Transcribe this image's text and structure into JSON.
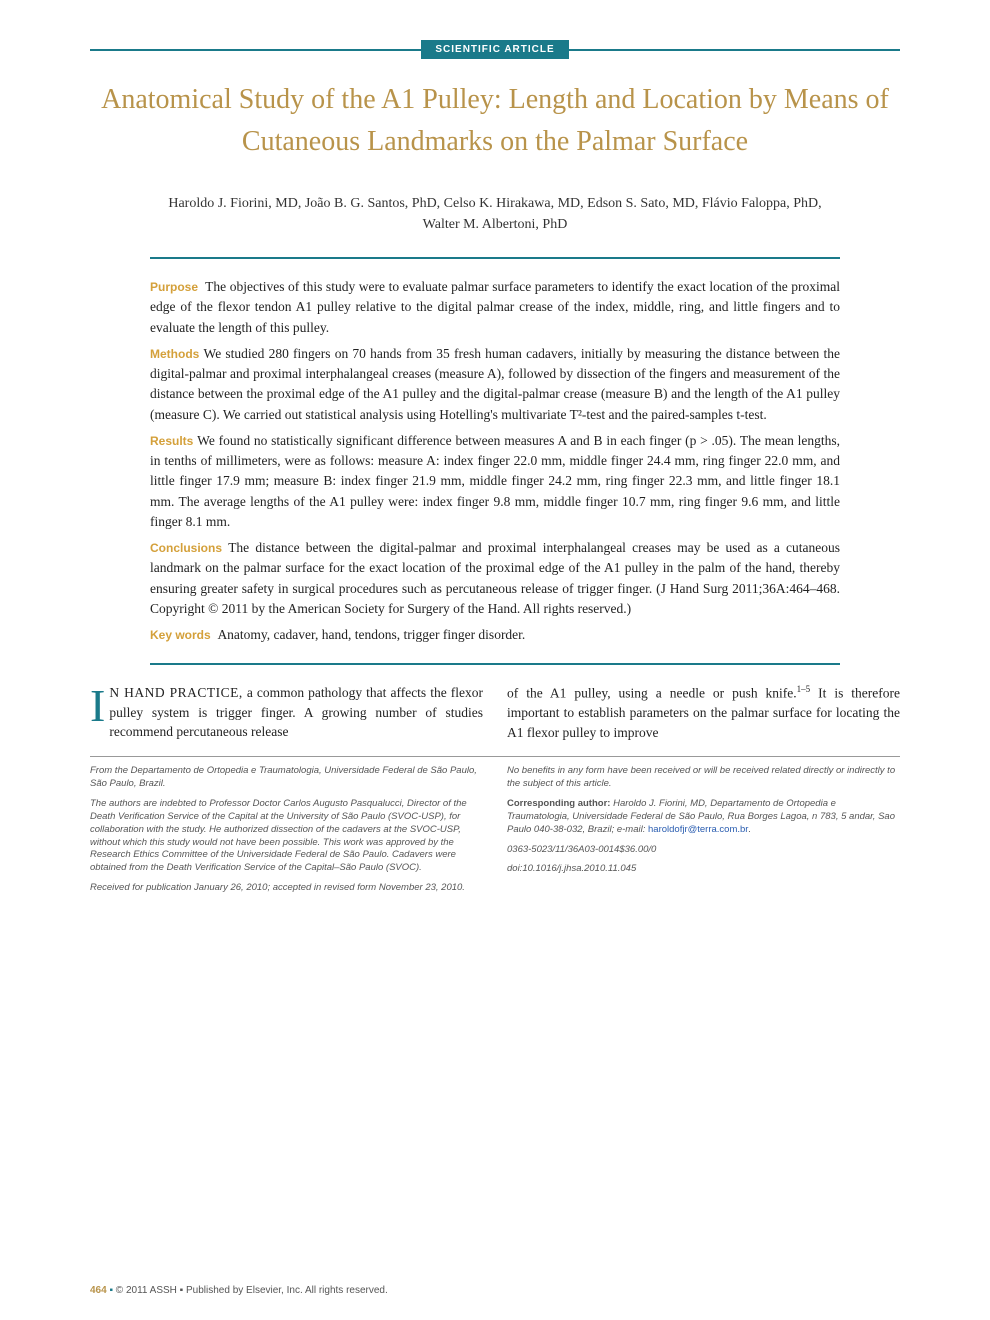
{
  "badge": "SCIENTIFIC ARTICLE",
  "title": "Anatomical Study of the A1 Pulley: Length and Location by Means of Cutaneous Landmarks on the Palmar Surface",
  "authors": "Haroldo J. Fiorini, MD, João B. G. Santos, PhD, Celso K. Hirakawa, MD, Edson S. Sato, MD, Flávio Faloppa, PhD, Walter M. Albertoni, PhD",
  "abstract": {
    "purpose_label": "Purpose",
    "purpose": "The objectives of this study were to evaluate palmar surface parameters to identify the exact location of the proximal edge of the flexor tendon A1 pulley relative to the digital palmar crease of the index, middle, ring, and little fingers and to evaluate the length of this pulley.",
    "methods_label": "Methods",
    "methods": "We studied 280 fingers on 70 hands from 35 fresh human cadavers, initially by measuring the distance between the digital-palmar and proximal interphalangeal creases (measure A), followed by dissection of the fingers and measurement of the distance between the proximal edge of the A1 pulley and the digital-palmar crease (measure B) and the length of the A1 pulley (measure C). We carried out statistical analysis using Hotelling's multivariate T²-test and the paired-samples t-test.",
    "results_label": "Results",
    "results": "We found no statistically significant difference between measures A and B in each finger (p > .05). The mean lengths, in tenths of millimeters, were as follows: measure A: index finger 22.0 mm, middle finger 24.4 mm, ring finger 22.0 mm, and little finger 17.9 mm; measure B: index finger 21.9 mm, middle finger 24.2 mm, ring finger 22.3 mm, and little finger 18.1 mm. The average lengths of the A1 pulley were: index finger 9.8 mm, middle finger 10.7 mm, ring finger 9.6 mm, and little finger 8.1 mm.",
    "conclusions_label": "Conclusions",
    "conclusions": "The distance between the digital-palmar and proximal interphalangeal creases may be used as a cutaneous landmark on the palmar surface for the exact location of the proximal edge of the A1 pulley in the palm of the hand, thereby ensuring greater safety in surgical procedures such as percutaneous release of trigger finger. (J Hand Surg 2011;36A:464–468. Copyright © 2011 by the American Society for Surgery of the Hand. All rights reserved.)",
    "keywords_label": "Key words",
    "keywords": "Anatomy, cadaver, hand, tendons, trigger finger disorder."
  },
  "body": {
    "col1_start": "N HAND PRACTICE,",
    "col1_rest": " a common pathology that affects the flexor pulley system is trigger finger. A growing number of studies recommend percutaneous release",
    "col2": "of the A1 pulley, using a needle or push knife.",
    "col2_sup": "1–5",
    "col2_rest": " It is therefore important to establish parameters on the palmar surface for locating the A1 flexor pulley to improve"
  },
  "footer": {
    "left1": "From the Departamento de Ortopedia e Traumatologia, Universidade Federal de São Paulo, São Paulo, Brazil.",
    "left2": "The authors are indebted to Professor Doctor Carlos Augusto Pasqualucci, Director of the Death Verification Service of the Capital at the University of São Paulo (SVOC-USP), for collaboration with the study. He authorized dissection of the cadavers at the SVOC-USP, without which this study would not have been possible. This work was approved by the Research Ethics Committee of the Universidade Federal de São Paulo. Cadavers were obtained from the Death Verification Service of the Capital–São Paulo (SVOC).",
    "left3": "Received for publication January 26, 2010; accepted in revised form November 23, 2010.",
    "right1": "No benefits in any form have been received or will be received related directly or indirectly to the subject of this article.",
    "right2a": "Corresponding author: ",
    "right2b": "Haroldo J. Fiorini, MD, Departamento de Ortopedia e Traumatologia, Universidade Federal de São Paulo, Rua Borges Lagoa, n 783, 5 andar, Sao Paulo 040-38-032, Brazil; e-mail: ",
    "email": "haroldofjr@terra.com.br",
    "right3": "0363-5023/11/36A03-0014$36.00/0",
    "right4": "doi:10.1016/j.jhsa.2010.11.045"
  },
  "pagefoot": {
    "num": "464",
    "rest": " © 2011 ASSH ▪ Published by Elsevier, Inc. All rights reserved."
  },
  "colors": {
    "teal": "#1a7a8a",
    "gold": "#b8934a",
    "gold_label": "#d4a03a",
    "text": "#222222",
    "footer_text": "#555555",
    "link": "#2a5db0",
    "background": "#ffffff"
  },
  "typography": {
    "title_fontsize": 28,
    "body_fontsize": 13.5,
    "abstract_fontsize": 13.5,
    "footer_fontsize": 9.5,
    "dropcap_fontsize": 46
  }
}
